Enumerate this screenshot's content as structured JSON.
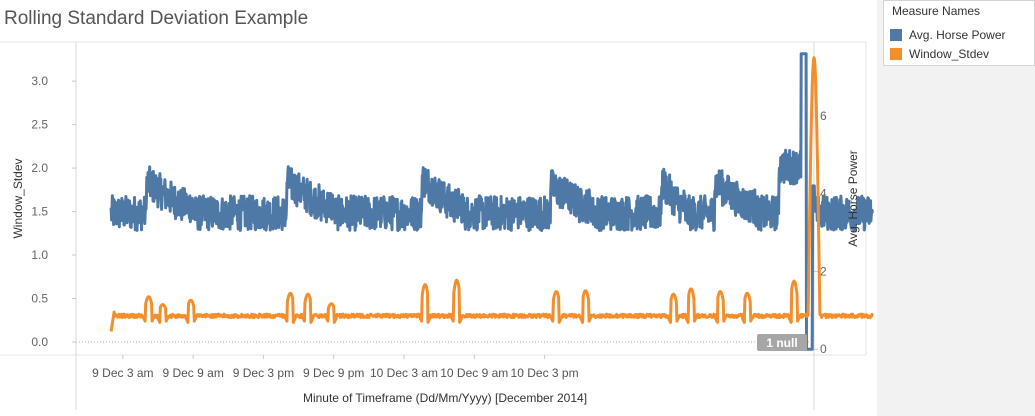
{
  "title": "Rolling Standard Deviation Example",
  "legend": {
    "title": "Measure Names",
    "items": [
      {
        "label": "Avg. Horse Power",
        "color": "#4e79a7"
      },
      {
        "label": "Window_Stdev",
        "color": "#f28e2b"
      }
    ]
  },
  "null_badge": "1 null",
  "chart_data": {
    "type": "line",
    "title": "Rolling Standard Deviation Example",
    "xlabel": "Minute of Timeframe (Dd/Mm/Yyyy) [December 2014]",
    "x_ticks": [
      "9 Dec 3 am",
      "9 Dec 9 am",
      "9 Dec 3 pm",
      "9 Dec 9 pm",
      "10 Dec 3 am",
      "10 Dec 9 am",
      "10 Dec 3 pm"
    ],
    "x_range_hours": [
      -4,
      59
    ],
    "y_left": {
      "label": "Window_Stdev",
      "ticks": [
        "0.0",
        "0.5",
        "1.0",
        "1.5",
        "2.0",
        "2.5",
        "3.0"
      ],
      "range": [
        -0.15,
        3.45
      ]
    },
    "y_right": {
      "label": "Avg. Horse Power",
      "ticks": [
        "0",
        "2",
        "4",
        "6"
      ],
      "range": [
        -0.15,
        7.9
      ]
    },
    "series": [
      {
        "name": "Avg. Horse Power",
        "axis": "right",
        "color": "#4e79a7",
        "base_value": 3.5,
        "noise_range": [
          -0.25,
          0.25
        ],
        "step_ups": [
          {
            "start": 2,
            "end": 6,
            "level": 4.3
          },
          {
            "start": 14,
            "end": 18,
            "level": 4.3
          },
          {
            "start": 25.5,
            "end": 29,
            "level": 4.4
          },
          {
            "start": 36.5,
            "end": 40,
            "level": 4.2
          },
          {
            "start": 46,
            "end": 48,
            "level": 4.3
          },
          {
            "start": 50.5,
            "end": 54,
            "level": 4.3
          }
        ],
        "spike": {
          "time": 58.3,
          "peak": 7.6,
          "pre_level": 4.7
        },
        "x_span_hours": [
          -1,
          64
        ]
      },
      {
        "name": "Window_Stdev",
        "axis": "left",
        "color": "#f28e2b",
        "base_value": 0.3,
        "bumps": [
          {
            "time": 2.2,
            "peak": 0.52
          },
          {
            "time": 3.4,
            "peak": 0.43
          },
          {
            "time": 5.8,
            "peak": 0.48
          },
          {
            "time": 14.3,
            "peak": 0.56
          },
          {
            "time": 15.8,
            "peak": 0.55
          },
          {
            "time": 17.8,
            "peak": 0.44
          },
          {
            "time": 25.8,
            "peak": 0.66
          },
          {
            "time": 28.5,
            "peak": 0.71
          },
          {
            "time": 37,
            "peak": 0.58
          },
          {
            "time": 39.5,
            "peak": 0.59
          },
          {
            "time": 47,
            "peak": 0.55
          },
          {
            "time": 48.5,
            "peak": 0.61
          },
          {
            "time": 51,
            "peak": 0.58
          },
          {
            "time": 53.3,
            "peak": 0.56
          },
          {
            "time": 57.3,
            "peak": 0.7
          }
        ],
        "spike": {
          "time": 59,
          "peak": 3.27
        },
        "x_span_hours": [
          -1,
          64
        ]
      }
    ]
  }
}
